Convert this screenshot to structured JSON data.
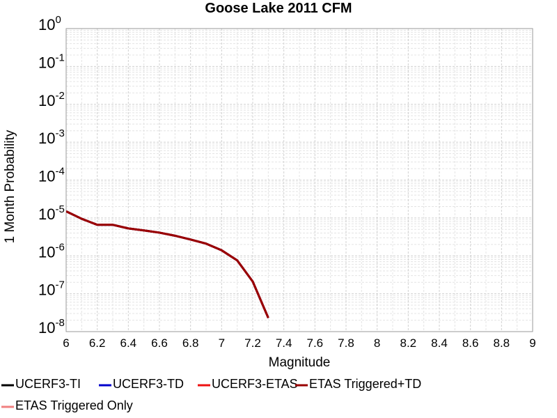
{
  "chart_data": {
    "type": "line",
    "title": "Goose Lake 2011 CFM",
    "x_label": "Magnitude",
    "y_label": "1 Month Probability",
    "log_y": true,
    "grid": true,
    "legend": "bottom",
    "x": [
      6.0,
      6.1,
      6.2,
      6.3,
      6.4,
      6.5,
      6.6,
      6.7,
      6.8,
      6.9,
      7.0,
      7.1,
      7.2,
      7.3
    ],
    "series": [
      {
        "name": "UCERF3-TI",
        "color": "#000000",
        "values": [
          1.5e-05,
          9.5e-06,
          6.6e-06,
          6.6e-06,
          5.3e-06,
          4.7e-06,
          4.1e-06,
          3.4e-06,
          2.7e-06,
          2.1e-06,
          1.4e-06,
          7.6e-07,
          2.1e-07,
          2.3e-08
        ]
      },
      {
        "name": "UCERF3-TD",
        "color": "#0000cc",
        "values": [
          1.5e-05,
          9.5e-06,
          6.6e-06,
          6.6e-06,
          5.3e-06,
          4.7e-06,
          4.1e-06,
          3.4e-06,
          2.7e-06,
          2.1e-06,
          1.4e-06,
          7.6e-07,
          2.1e-07,
          2.3e-08
        ]
      },
      {
        "name": "UCERF3-ETAS",
        "color": "#ee1111",
        "values": [
          1.5e-05,
          9.5e-06,
          6.6e-06,
          6.6e-06,
          5.3e-06,
          4.7e-06,
          4.1e-06,
          3.4e-06,
          2.7e-06,
          2.1e-06,
          1.4e-06,
          7.6e-07,
          2.1e-07,
          2.3e-08
        ]
      },
      {
        "name": "ETAS Triggered+TD",
        "color": "#990000",
        "values": [
          1.5e-05,
          9.5e-06,
          6.6e-06,
          6.6e-06,
          5.3e-06,
          4.7e-06,
          4.1e-06,
          3.4e-06,
          2.7e-06,
          2.1e-06,
          1.4e-06,
          7.6e-07,
          2.1e-07,
          2.3e-08
        ]
      },
      {
        "name": "ETAS Triggered Only",
        "color": "#f08080",
        "values": [
          null,
          null,
          null,
          null,
          null,
          null,
          null,
          null,
          null,
          null,
          null,
          null,
          null,
          null
        ]
      }
    ],
    "xlim": [
      6,
      9
    ],
    "xticks": [
      6,
      6.2,
      6.4,
      6.6,
      6.8,
      7,
      7.2,
      7.4,
      7.6,
      7.8,
      8,
      8.2,
      8.4,
      8.6,
      8.8,
      9
    ],
    "ylim": [
      1e-08,
      1
    ],
    "yticks": [
      {
        "value": 1,
        "base": "10",
        "exponent": "0"
      },
      {
        "value": 0.1,
        "base": "10",
        "exponent": "-1"
      },
      {
        "value": 0.01,
        "base": "10",
        "exponent": "-2"
      },
      {
        "value": 0.001,
        "base": "10",
        "exponent": "-3"
      },
      {
        "value": 0.0001,
        "base": "10",
        "exponent": "-4"
      },
      {
        "value": 1e-05,
        "base": "10",
        "exponent": "-5"
      },
      {
        "value": 1e-06,
        "base": "10",
        "exponent": "-6"
      },
      {
        "value": 1e-07,
        "base": "10",
        "exponent": "-7"
      },
      {
        "value": 1e-08,
        "base": "10",
        "exponent": "-8"
      }
    ]
  }
}
